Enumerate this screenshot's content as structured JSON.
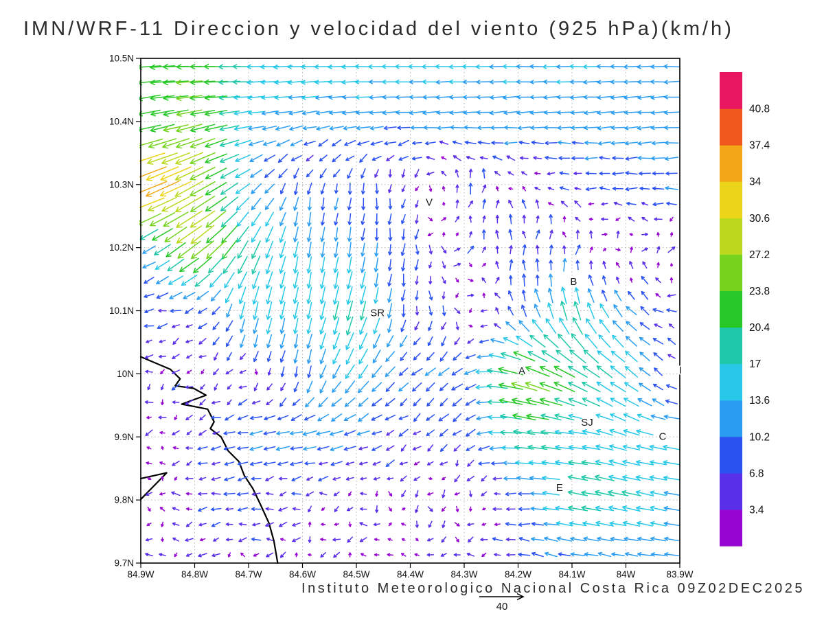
{
  "chart_data": {
    "type": "vector_field",
    "title": "IMN/WRF-11 Direccion y velocidad del viento (925 hPa)(km/h)",
    "caption": "Instituto Meteorologico Nacional Costa Rica 09Z02DEC2025",
    "units": "km/h",
    "level": "925 hPa",
    "reference_vector": {
      "label": "40",
      "speed": 40
    },
    "axes": {
      "lon_range": [
        -84.9,
        -83.9
      ],
      "lat_range": [
        9.7,
        10.5
      ],
      "lon_values": [
        -84.9,
        -84.8,
        -84.7,
        -84.6,
        -84.5,
        -84.4,
        -84.3,
        -84.2,
        -84.1,
        -84.0,
        -83.9
      ],
      "lat_values": [
        10.5,
        10.4,
        10.3,
        10.2,
        10.1,
        10.0,
        9.9,
        9.8,
        9.7
      ],
      "lon_ticks": [
        "84.9W",
        "84.8W",
        "84.7W",
        "84.6W",
        "84.5W",
        "84.4W",
        "84.3W",
        "84.2W",
        "84.1W",
        "84W",
        "83.9W"
      ],
      "lat_ticks": [
        "10.5N",
        "10.4N",
        "10.3N",
        "10.2N",
        "10.1N",
        "10N",
        "9.9N",
        "9.8N",
        "9.7N"
      ],
      "grid": true
    },
    "colorbar": {
      "levels": [
        3.4,
        6.8,
        10.2,
        13.6,
        17,
        20.4,
        23.8,
        27.2,
        30.6,
        34,
        37.4,
        40.8
      ],
      "colors": [
        "#9506d2",
        "#5a2fe8",
        "#2a52f0",
        "#2a9df0",
        "#28c8e8",
        "#1fc8a8",
        "#28c828",
        "#76d41e",
        "#bcd81e",
        "#ecd418",
        "#f2a818",
        "#f0581e",
        "#e81660"
      ],
      "position": "right"
    },
    "wind_grid": {
      "lons": [
        -84.9,
        -84.8,
        -84.7,
        -84.6,
        -84.5,
        -84.4,
        -84.3,
        -84.2,
        -84.1,
        -84.0,
        -83.9
      ],
      "lats": [
        10.5,
        10.4,
        10.3,
        10.2,
        10.1,
        10.0,
        9.9,
        9.8,
        9.7
      ],
      "u": [
        [
          -22,
          -24,
          -18,
          -16,
          -15,
          -15,
          -14,
          -14,
          -14,
          -13,
          -13
        ],
        [
          -20,
          -24,
          -14,
          -12,
          -12,
          -12,
          -12,
          -12,
          -12,
          -12,
          -12
        ],
        [
          -38,
          -26,
          -10,
          -2,
          -1,
          0,
          2,
          -3,
          -6,
          -9,
          -10
        ],
        [
          -8,
          -24,
          -8,
          -2,
          -2,
          -1,
          2,
          1,
          2,
          2,
          3
        ],
        [
          -8,
          -6,
          -4,
          -3,
          -5,
          0,
          2,
          -4,
          -5,
          -8,
          -5
        ],
        [
          -3,
          -3,
          -2,
          -2,
          -8,
          -8,
          -8,
          -26,
          -18,
          -12,
          -3
        ],
        [
          -2,
          -4,
          -10,
          -12,
          -10,
          -4,
          -6,
          -20,
          -16,
          -14,
          -16
        ],
        [
          1,
          -6,
          -8,
          -3,
          -2,
          0,
          1,
          -8,
          -18,
          -18,
          -12
        ],
        [
          -2,
          -3,
          -3,
          -2,
          -3,
          -2,
          -3,
          -8,
          -10,
          -10,
          -12
        ]
      ],
      "v": [
        [
          -2,
          1,
          0,
          -1,
          0,
          0,
          0,
          0,
          0,
          0,
          0
        ],
        [
          -4,
          -5,
          -2,
          -2,
          -1,
          -1,
          -1,
          -1,
          -1,
          -1,
          -1
        ],
        [
          -14,
          -14,
          -8,
          -8,
          -8,
          -5,
          8,
          2,
          1,
          0,
          0
        ],
        [
          -5,
          -18,
          -16,
          -14,
          -12,
          -8,
          2,
          8,
          6,
          1,
          1
        ],
        [
          -1,
          -2,
          -16,
          -14,
          -18,
          -8,
          -4,
          8,
          18,
          8,
          1
        ],
        [
          -2,
          -3,
          -3,
          -10,
          -12,
          -6,
          -6,
          8,
          10,
          10,
          3
        ],
        [
          -2,
          -1,
          -2,
          -2,
          -3,
          -3,
          -5,
          2,
          2,
          4,
          2
        ],
        [
          1,
          -1,
          -1,
          -1,
          -1,
          -2,
          -3,
          0,
          3,
          4,
          2
        ],
        [
          0,
          0,
          -1,
          -1,
          -1,
          -1,
          -1,
          1,
          2,
          1,
          2
        ]
      ]
    },
    "annotations": [
      {
        "label": "V",
        "lon": -84.365,
        "lat": 10.272
      },
      {
        "label": "SR",
        "lon": -84.461,
        "lat": 10.097
      },
      {
        "label": "B",
        "lon": -84.097,
        "lat": 10.146
      },
      {
        "label": "A",
        "lon": -84.193,
        "lat": 10.005
      },
      {
        "label": "SJ",
        "lon": -84.072,
        "lat": 9.923
      },
      {
        "label": "C",
        "lon": -83.932,
        "lat": 9.901
      },
      {
        "label": "E",
        "lon": -84.123,
        "lat": 9.82
      },
      {
        "label": "I",
        "lon": -83.899,
        "lat": 10.006
      }
    ],
    "coastline": [
      [
        [
          -84.9,
          10.027
        ],
        [
          -84.845,
          10.007
        ],
        [
          -84.827,
          9.992
        ],
        [
          -84.836,
          9.981
        ],
        [
          -84.802,
          9.977
        ],
        [
          -84.779,
          9.966
        ],
        [
          -84.824,
          9.952
        ],
        [
          -84.776,
          9.944
        ],
        [
          -84.764,
          9.924
        ],
        [
          -84.771,
          9.913
        ],
        [
          -84.751,
          9.9
        ],
        [
          -84.738,
          9.878
        ],
        [
          -84.718,
          9.861
        ],
        [
          -84.708,
          9.839
        ],
        [
          -84.692,
          9.818
        ],
        [
          -84.677,
          9.791
        ],
        [
          -84.662,
          9.763
        ],
        [
          -84.653,
          9.735
        ],
        [
          -84.646,
          9.7
        ]
      ],
      [
        [
          -84.9,
          9.834
        ],
        [
          -84.852,
          9.843
        ],
        [
          -84.9,
          9.801
        ]
      ]
    ]
  }
}
